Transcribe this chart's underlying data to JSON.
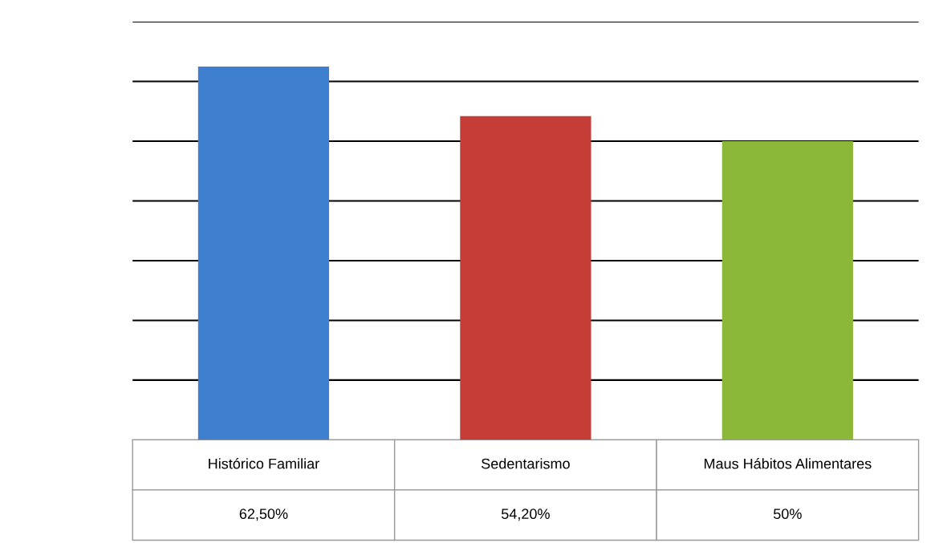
{
  "chart_data": {
    "type": "bar",
    "categories": [
      "Histórico Familiar",
      "Sedentarismo",
      "Maus Hábitos Alimentares"
    ],
    "values": [
      62.5,
      54.2,
      50
    ],
    "colors": [
      "#3f7fcf",
      "#c63c36",
      "#8cb83a"
    ],
    "value_labels": [
      "62,50%",
      "54,20%",
      "50%"
    ],
    "ylim": [
      0,
      70
    ],
    "yticks": [
      {
        "value": 10,
        "label": null
      },
      {
        "value": 20,
        "label": null
      },
      {
        "value": 30,
        "label": null
      },
      {
        "value": 40,
        "label": null
      },
      {
        "value": 50,
        "label": null
      },
      {
        "value": 60,
        "label": null
      },
      {
        "value": 70,
        "label": null
      }
    ],
    "grid": "y"
  }
}
